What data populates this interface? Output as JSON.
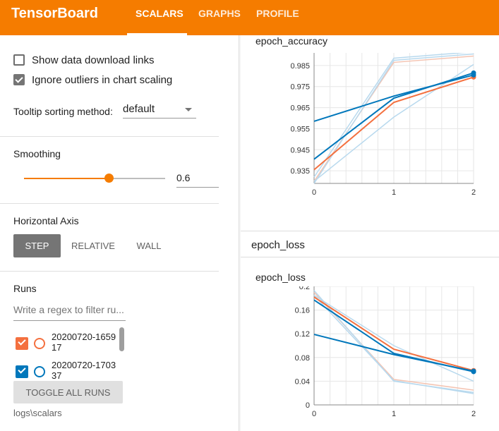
{
  "header": {
    "brand": "TensorBoard",
    "tabs": [
      {
        "label": "SCALARS",
        "active": true
      },
      {
        "label": "GRAPHS",
        "active": false
      },
      {
        "label": "PROFILE",
        "active": false
      }
    ],
    "accent_color": "#f57c00"
  },
  "sidebar": {
    "show_download_links": {
      "label": "Show data download links",
      "checked": false
    },
    "ignore_outliers": {
      "label": "Ignore outliers in chart scaling",
      "checked": true
    },
    "tooltip_sort": {
      "label": "Tooltip sorting method:",
      "value": "default"
    },
    "smoothing": {
      "label": "Smoothing",
      "value": "0.6",
      "level": 0.6
    },
    "horizontal_axis": {
      "label": "Horizontal Axis",
      "options": [
        "STEP",
        "RELATIVE",
        "WALL"
      ],
      "selected": "STEP"
    },
    "runs": {
      "label": "Runs",
      "filter_placeholder": "Write a regex to filter ru...",
      "items": [
        {
          "name": "20200720-165917",
          "line1": "20200720-1659",
          "line2": "17",
          "color": "#f4703f",
          "checked": true
        },
        {
          "name": "20200720-170337",
          "line1": "20200720-1703",
          "line2": "37",
          "color": "#0077bb",
          "checked": true
        }
      ],
      "toggle_all_label": "TOGGLE ALL RUNS",
      "logdir": "logs\\scalars"
    }
  },
  "main": {
    "accuracy_title": "epoch_accuracy",
    "loss_group_title": "epoch_loss",
    "loss_title": "epoch_loss"
  },
  "chart_data": [
    {
      "type": "line",
      "title": "epoch_accuracy",
      "x": [
        0,
        1,
        2
      ],
      "xlabel": "",
      "ylabel": "",
      "x_ticks": [
        "0",
        "1",
        "2"
      ],
      "y_ticks": [
        "0.935",
        "0.945",
        "0.955",
        "0.965",
        "0.975",
        "0.985"
      ],
      "ylim": [
        0.929,
        0.991
      ],
      "grid": true,
      "series": [
        {
          "color": "#f4703f",
          "values": [
            0.9355,
            0.9675,
            0.9795
          ]
        },
        {
          "color": "#0077bb",
          "values": [
            0.9405,
            0.9695,
            0.9815
          ]
        },
        {
          "color": "#0077bb",
          "values": [
            0.9585,
            0.9705,
            0.9805
          ]
        },
        {
          "color": "#f4703f",
          "faded": true,
          "values": [
            0.93,
            0.9865,
            0.9895
          ]
        },
        {
          "color": "#0077bb",
          "faded": true,
          "values": [
            0.932,
            0.9885,
            0.9915
          ]
        },
        {
          "color": "#0077bb",
          "faded": true,
          "values": [
            0.929,
            0.9875,
            0.9905
          ]
        },
        {
          "color": "#0077bb",
          "faded": true,
          "values": [
            0.93,
            0.9605,
            0.9855
          ]
        }
      ]
    },
    {
      "type": "line",
      "title": "epoch_loss",
      "x": [
        0,
        1,
        2
      ],
      "xlabel": "",
      "ylabel": "",
      "x_ticks": [
        "0",
        "1",
        "2"
      ],
      "y_ticks": [
        "0",
        "0.04",
        "0.08",
        "0.12",
        "0.16",
        "0.2"
      ],
      "ylim": [
        0,
        0.2
      ],
      "grid": true,
      "series": [
        {
          "color": "#f4703f",
          "values": [
            0.182,
            0.094,
            0.058
          ]
        },
        {
          "color": "#0077bb",
          "values": [
            0.177,
            0.087,
            0.056
          ]
        },
        {
          "color": "#0077bb",
          "values": [
            0.119,
            0.085,
            0.057
          ]
        },
        {
          "color": "#f4703f",
          "faded": true,
          "values": [
            0.19,
            0.043,
            0.025
          ]
        },
        {
          "color": "#0077bb",
          "faded": true,
          "values": [
            0.193,
            0.04,
            0.021
          ]
        },
        {
          "color": "#0077bb",
          "faded": true,
          "values": [
            0.185,
            0.041,
            0.019
          ]
        },
        {
          "color": "#0077bb",
          "faded": true,
          "values": [
            0.185,
            0.1,
            0.04
          ]
        }
      ]
    }
  ]
}
